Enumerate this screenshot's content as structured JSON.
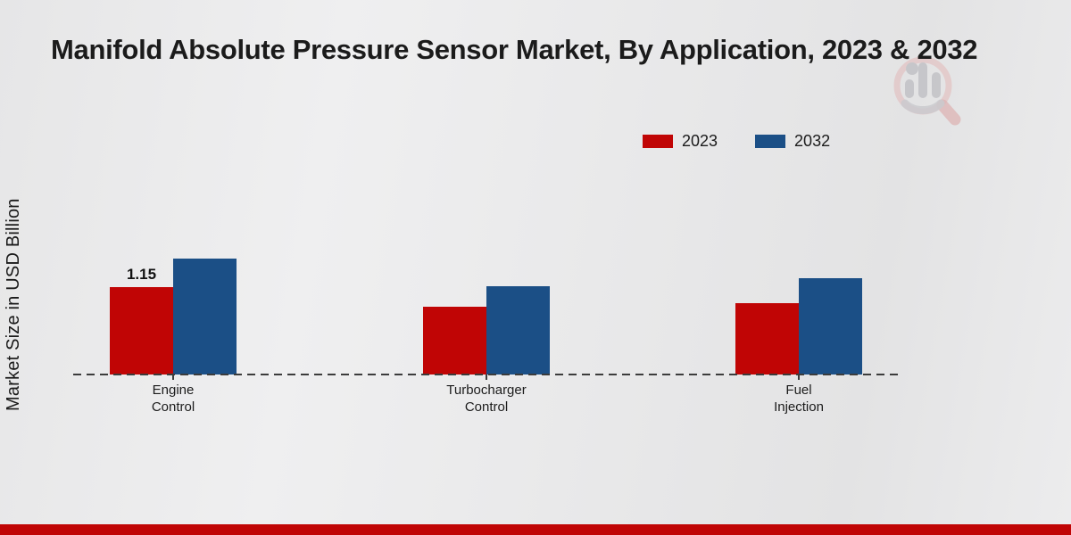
{
  "page": {
    "title": "Manifold Absolute Pressure Sensor Market, By Application, 2023 & 2032"
  },
  "colors": {
    "series_2023": "#c00505",
    "series_2032": "#1b4f86",
    "baseline": "#3c3c3c",
    "footer_bar": "#c00505",
    "title_text": "#1b1b1b",
    "logo_ring": "#e3bcbc",
    "logo_glyph": "#c2c2c6"
  },
  "icons": {
    "logo": "magnifier-bar-chart-logo"
  },
  "legend": [
    {
      "label": "2023",
      "color": "#c00505"
    },
    {
      "label": "2032",
      "color": "#1b4f86"
    }
  ],
  "chart_data": {
    "type": "bar",
    "title": "Manifold Absolute Pressure Sensor Market, By Application, 2023 & 2032",
    "ylabel": "Market Size in USD Billion",
    "xlabel": "",
    "categories": [
      "Engine Control",
      "Turbocharger Control",
      "Fuel Injection"
    ],
    "series": [
      {
        "name": "2023",
        "color": "#c00505",
        "values": [
          1.15,
          0.89,
          0.94
        ],
        "labels": [
          "1.15",
          "",
          ""
        ]
      },
      {
        "name": "2032",
        "color": "#1b4f86",
        "values": [
          1.52,
          1.16,
          1.27
        ],
        "labels": [
          "",
          "",
          ""
        ]
      }
    ],
    "value_axis_visible": false,
    "gridlines": false,
    "baseline_style": "dashed",
    "legend_position": "top-right"
  }
}
